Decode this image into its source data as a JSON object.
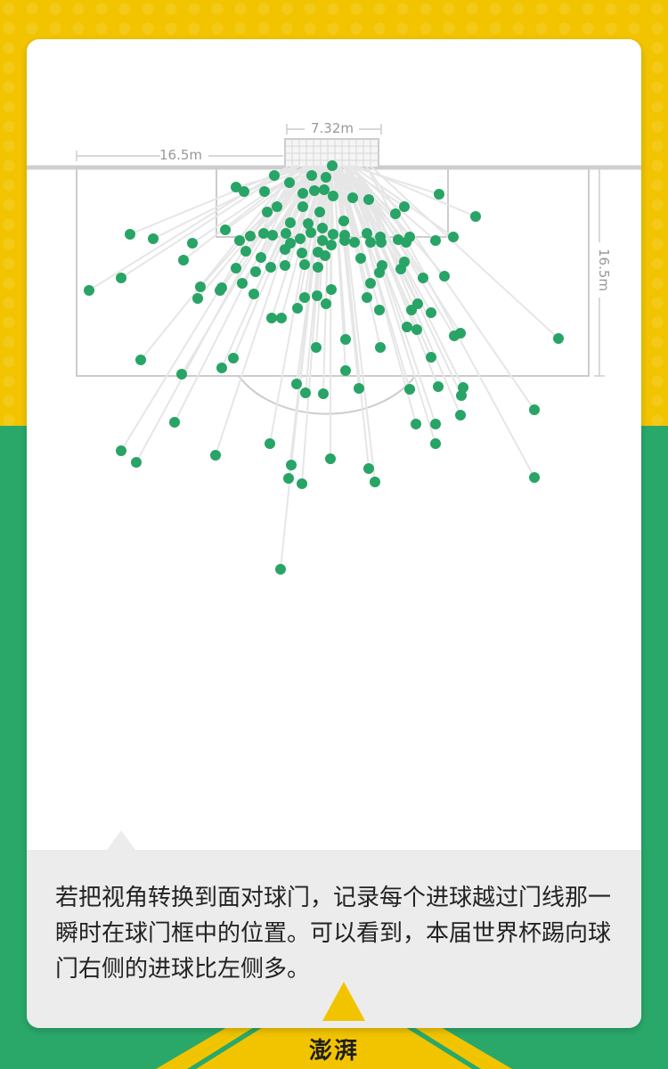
{
  "chart_data": {
    "type": "scatter",
    "title": "",
    "xlabel": "",
    "ylabel": "",
    "annotations": {
      "goal_width": "7.32m",
      "box_width": "16.5m",
      "box_depth": "16.5m"
    },
    "point_color": "#27a466",
    "line_color": "#e6e6e6",
    "points": [
      [
        373,
        186
      ],
      [
        350,
        197
      ],
      [
        366,
        199
      ],
      [
        325,
        205
      ],
      [
        308,
        197
      ],
      [
        265,
        210
      ],
      [
        274,
        215
      ],
      [
        297,
        215
      ],
      [
        340,
        217
      ],
      [
        353,
        214
      ],
      [
        364,
        213
      ],
      [
        396,
        222
      ],
      [
        414,
        224
      ],
      [
        374,
        220
      ],
      [
        493,
        218
      ],
      [
        534,
        243
      ],
      [
        454,
        232
      ],
      [
        444,
        240
      ],
      [
        311,
        232
      ],
      [
        340,
        232
      ],
      [
        359,
        238
      ],
      [
        300,
        238
      ],
      [
        326,
        250
      ],
      [
        346,
        251
      ],
      [
        362,
        256
      ],
      [
        386,
        248
      ],
      [
        146,
        263
      ],
      [
        172,
        268
      ],
      [
        216,
        273
      ],
      [
        253,
        258
      ],
      [
        269,
        270
      ],
      [
        281,
        265
      ],
      [
        296,
        262
      ],
      [
        306,
        264
      ],
      [
        321,
        262
      ],
      [
        326,
        273
      ],
      [
        337,
        268
      ],
      [
        349,
        261
      ],
      [
        362,
        270
      ],
      [
        374,
        263
      ],
      [
        387,
        264
      ],
      [
        398,
        272
      ],
      [
        412,
        262
      ],
      [
        427,
        266
      ],
      [
        447,
        269
      ],
      [
        460,
        266
      ],
      [
        489,
        270
      ],
      [
        509,
        266
      ],
      [
        276,
        282
      ],
      [
        293,
        289
      ],
      [
        320,
        280
      ],
      [
        339,
        284
      ],
      [
        357,
        283
      ],
      [
        365,
        287
      ],
      [
        372,
        275
      ],
      [
        387,
        270
      ],
      [
        416,
        272
      ],
      [
        428,
        272
      ],
      [
        456,
        272
      ],
      [
        206,
        292
      ],
      [
        136,
        312
      ],
      [
        100,
        326
      ],
      [
        225,
        322
      ],
      [
        249,
        323
      ],
      [
        265,
        301
      ],
      [
        287,
        305
      ],
      [
        304,
        300
      ],
      [
        320,
        298
      ],
      [
        342,
        297
      ],
      [
        357,
        300
      ],
      [
        405,
        290
      ],
      [
        429,
        298
      ],
      [
        454,
        294
      ],
      [
        450,
        302
      ],
      [
        475,
        312
      ],
      [
        499,
        310
      ],
      [
        426,
        306
      ],
      [
        416,
        318
      ],
      [
        222,
        335
      ],
      [
        247,
        326
      ],
      [
        272,
        318
      ],
      [
        285,
        330
      ],
      [
        305,
        357
      ],
      [
        316,
        357
      ],
      [
        334,
        346
      ],
      [
        342,
        334
      ],
      [
        356,
        332
      ],
      [
        366,
        341
      ],
      [
        372,
        325
      ],
      [
        412,
        334
      ],
      [
        426,
        348
      ],
      [
        462,
        348
      ],
      [
        469,
        341
      ],
      [
        484,
        351
      ],
      [
        457,
        367
      ],
      [
        468,
        370
      ],
      [
        510,
        377
      ],
      [
        517,
        374
      ],
      [
        627,
        380
      ],
      [
        158,
        404
      ],
      [
        204,
        420
      ],
      [
        249,
        413
      ],
      [
        262,
        402
      ],
      [
        355,
        390
      ],
      [
        388,
        381
      ],
      [
        427,
        390
      ],
      [
        484,
        401
      ],
      [
        388,
        416
      ],
      [
        403,
        436
      ],
      [
        333,
        431
      ],
      [
        343,
        441
      ],
      [
        363,
        442
      ],
      [
        460,
        437
      ],
      [
        492,
        434
      ],
      [
        520,
        435
      ],
      [
        518,
        444
      ],
      [
        600,
        460
      ],
      [
        196,
        474
      ],
      [
        136,
        506
      ],
      [
        153,
        519
      ],
      [
        242,
        511
      ],
      [
        303,
        498
      ],
      [
        327,
        522
      ],
      [
        324,
        537
      ],
      [
        339,
        543
      ],
      [
        371,
        515
      ],
      [
        414,
        526
      ],
      [
        421,
        541
      ],
      [
        489,
        476
      ],
      [
        467,
        476
      ],
      [
        489,
        498
      ],
      [
        517,
        466
      ],
      [
        600,
        536
      ],
      [
        315,
        639
      ]
    ]
  },
  "caption": {
    "text": "若把视角转换到面对球门，记录每个进球越过门线那一瞬时在球门框中的位置。可以看到，本届世界杯踢向球门右侧的进球比左侧多。"
  },
  "logo": {
    "text": "澎湃"
  }
}
